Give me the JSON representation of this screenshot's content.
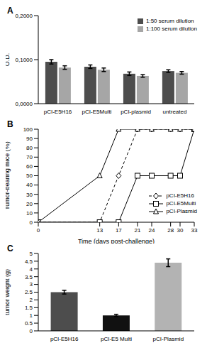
{
  "chart_data": [
    {
      "type": "bar",
      "title": "A",
      "categories": [
        "pCI-E5H16",
        "pCI-E5Multi",
        "pCI-plasmid",
        "untreated"
      ],
      "series": [
        {
          "name": "1:50 serum dilution",
          "color": "#4d4d4d",
          "values": [
            0.095,
            0.084,
            0.068,
            0.074
          ],
          "errors": [
            0.005,
            0.004,
            0.004,
            0.003
          ]
        },
        {
          "name": "1:100 serum dilution",
          "color": "#a6a6a6",
          "values": [
            0.082,
            0.077,
            0.063,
            0.07
          ],
          "errors": [
            0.004,
            0.004,
            0.003,
            0.003
          ]
        }
      ],
      "ylabel": "O.D.",
      "ylim": [
        0,
        0.2
      ],
      "yticks": [
        {
          "value": 0,
          "label": "0,0000"
        },
        {
          "value": 0.1,
          "label": "0,1000"
        },
        {
          "value": 0.2,
          "label": "0,2000"
        }
      ],
      "legend": "upper right"
    },
    {
      "type": "line",
      "title": "B",
      "x": [
        0,
        13,
        17,
        21,
        24,
        28,
        30,
        33
      ],
      "series": [
        {
          "name": "pCI-E5H16",
          "color": "#000000",
          "marker": "diamond",
          "line_style": "dashed",
          "values": [
            0,
            0,
            50,
            100,
            100,
            100,
            100,
            100
          ]
        },
        {
          "name": "pCI-E5Multi",
          "color": "#000000",
          "marker": "square",
          "line_style": "solid",
          "values": [
            0,
            0,
            0,
            50,
            50,
            50,
            50,
            100
          ]
        },
        {
          "name": "pCI-Plasmid",
          "color": "#000000",
          "marker": "triangle",
          "line_style": "solid",
          "values": [
            0,
            50,
            100,
            100,
            100,
            100,
            100,
            100
          ]
        }
      ],
      "xlabel": "Time (days post-challenge)",
      "ylabel": "Tumor-bearing mice (%)",
      "xlim": [
        0,
        33
      ],
      "xticks": [
        0,
        13,
        17,
        21,
        24,
        28,
        30,
        33
      ],
      "ylim": [
        0,
        100
      ],
      "yticks": [
        0,
        10,
        20,
        30,
        40,
        50,
        60,
        70,
        80,
        90,
        100
      ],
      "legend": "lower right"
    },
    {
      "type": "bar",
      "title": "C",
      "categories": [
        "pCI-E5H16",
        "pCI-E5 Multi",
        "pCI-Plasmid"
      ],
      "values": [
        2.5,
        1.0,
        4.4
      ],
      "errors": [
        0.12,
        0.07,
        0.25
      ],
      "colors": [
        "#4d4d4d",
        "#111111",
        "#b3b3b3"
      ],
      "ylabel": "tumor weight (g)",
      "ylim": [
        0,
        5
      ],
      "yticks": [
        0,
        0.5,
        1,
        1.5,
        2,
        2.5,
        3,
        3.5,
        4,
        4.5,
        5
      ]
    }
  ]
}
